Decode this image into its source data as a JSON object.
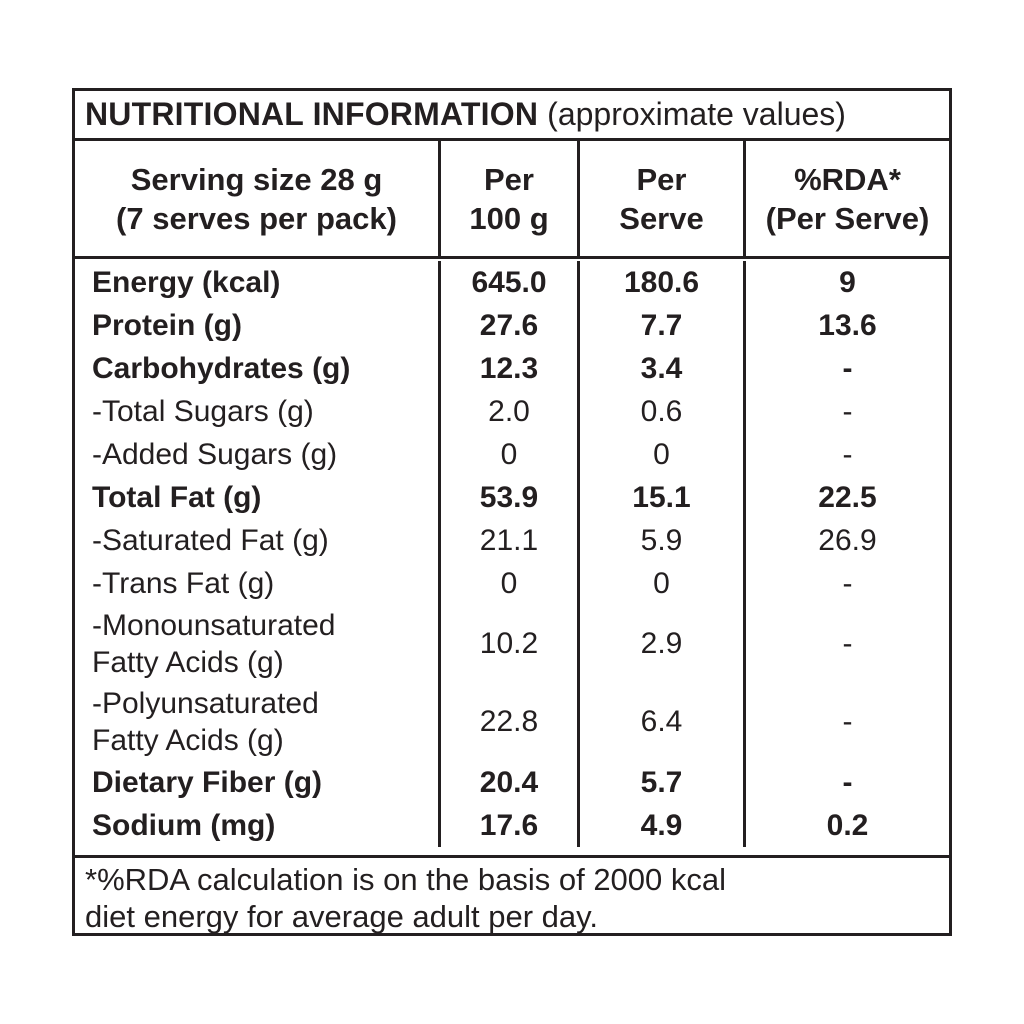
{
  "colors": {
    "text": "#231f20",
    "border": "#231f20",
    "background": "#ffffff"
  },
  "header": {
    "title": "NUTRITIONAL INFORMATION",
    "subtitle": "(approximate values)"
  },
  "column_headers": [
    {
      "line1": "Serving size 28 g",
      "line2": "(7 serves per pack)"
    },
    {
      "line1": "Per",
      "line2": "100 g"
    },
    {
      "line1": "Per",
      "line2": "Serve"
    },
    {
      "line1": "%RDA*",
      "line2": "(Per Serve)"
    }
  ],
  "rows": [
    {
      "label": "Energy (kcal)",
      "per_100g": "645.0",
      "per_serve": "180.6",
      "rda": "9",
      "bold": true
    },
    {
      "label": "Protein (g)",
      "per_100g": "27.6",
      "per_serve": "7.7",
      "rda": "13.6",
      "bold": true
    },
    {
      "label": "Carbohydrates (g)",
      "per_100g": "12.3",
      "per_serve": "3.4",
      "rda": "-",
      "bold": true
    },
    {
      "label": "-Total Sugars (g)",
      "per_100g": "2.0",
      "per_serve": "0.6",
      "rda": "-",
      "bold": false
    },
    {
      "label": "-Added Sugars (g)",
      "per_100g": "0",
      "per_serve": "0",
      "rda": "-",
      "bold": false
    },
    {
      "label": "Total Fat (g)",
      "per_100g": "53.9",
      "per_serve": "15.1",
      "rda": "22.5",
      "bold": true
    },
    {
      "label": "-Saturated Fat (g)",
      "per_100g": "21.1",
      "per_serve": "5.9",
      "rda": "26.9",
      "bold": false
    },
    {
      "label": "-Trans Fat (g)",
      "per_100g": "0",
      "per_serve": "0",
      "rda": "-",
      "bold": false
    },
    {
      "label": "-Monounsaturated",
      "label2": "Fatty Acids (g)",
      "per_100g": "10.2",
      "per_serve": "2.9",
      "rda": "-",
      "bold": false
    },
    {
      "label": "-Polyunsaturated",
      "label2": "Fatty Acids (g)",
      "per_100g": "22.8",
      "per_serve": "6.4",
      "rda": "-",
      "bold": false
    },
    {
      "label": "Dietary Fiber (g)",
      "per_100g": "20.4",
      "per_serve": "5.7",
      "rda": "-",
      "bold": true
    },
    {
      "label": "Sodium (mg)",
      "per_100g": "17.6",
      "per_serve": "4.9",
      "rda": "0.2",
      "bold": true
    }
  ],
  "footnote": {
    "line1": "*%RDA calculation is on the basis of 2000 kcal",
    "line2": "diet energy for average adult per day."
  }
}
